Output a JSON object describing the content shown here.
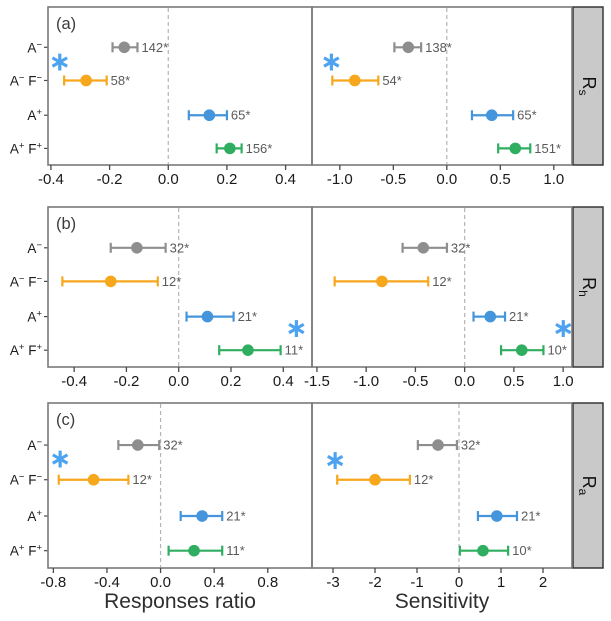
{
  "columns": [
    {
      "axis_title": "Responses ratio"
    },
    {
      "axis_title": "Sensitivity"
    }
  ],
  "star_char": "∗",
  "colors": {
    "gray": "#8e8e8e",
    "orange": "#f6a71c",
    "blue": "#4495dc",
    "green": "#2fae60",
    "star": "#4da3f0",
    "count_label": "#5a5a5a",
    "tick_text": "#1a1a1a",
    "tick_mark": "#4a4a4a",
    "panel_border": "#7a7a7a",
    "zero_line": "#b5b5b5",
    "strip_fill": "#c9c9c9",
    "strip_border": "#2b2b2b",
    "strip_text": "#111111",
    "category_label": "#1a1a1a",
    "panel_letter": "#3c3c3c",
    "axis_title": "#2e2e2e"
  },
  "categories": [
    [
      {
        "t": "A"
      },
      {
        "t": "−",
        "sup": true
      }
    ],
    [
      {
        "t": "A"
      },
      {
        "t": "−",
        "sup": true
      },
      {
        "t": " F"
      },
      {
        "t": "−",
        "sup": true
      }
    ],
    [
      {
        "t": "A"
      },
      {
        "t": "+",
        "sup": true
      }
    ],
    [
      {
        "t": "A"
      },
      {
        "t": "+",
        "sup": true
      },
      {
        "t": " F"
      },
      {
        "t": "+",
        "sup": true
      }
    ]
  ],
  "chart_data": [
    {
      "type": "forest-dot",
      "panel_letter": "(a)",
      "strip_label": {
        "base": "R",
        "sub": "s"
      },
      "panels": [
        {
          "side": "left",
          "xlabel": "Responses ratio",
          "xlim": [
            -0.41,
            0.49
          ],
          "ticks": [
            {
              "v": -0.4,
              "label": "-0.4"
            },
            {
              "v": -0.2,
              "label": "-0.2"
            },
            {
              "v": 0.0,
              "label": "0.0"
            },
            {
              "v": 0.2,
              "label": "0.2"
            },
            {
              "v": 0.4,
              "label": "0.4"
            }
          ],
          "points": [
            {
              "category": "A−",
              "color": "gray",
              "value": -0.15,
              "ci": [
                -0.19,
                -0.105
              ],
              "n": "142*"
            },
            {
              "category": "A− F−",
              "color": "orange",
              "value": -0.28,
              "ci": [
                -0.355,
                -0.21
              ],
              "n": "58*"
            },
            {
              "category": "A+",
              "color": "blue",
              "value": 0.14,
              "ci": [
                0.07,
                0.2
              ],
              "n": "65*"
            },
            {
              "category": "A+ F+",
              "color": "green",
              "value": 0.21,
              "ci": [
                0.165,
                0.25
              ],
              "n": "156*"
            }
          ],
          "star": {
            "x": -0.37,
            "row_pos": 0.45
          }
        },
        {
          "side": "right",
          "xlabel": "Sensitivity",
          "xlim": [
            -1.26,
            1.17
          ],
          "ticks": [
            {
              "v": -1.0,
              "label": "-1.0"
            },
            {
              "v": -0.5,
              "label": "-0.5"
            },
            {
              "v": 0.0,
              "label": "0.0"
            },
            {
              "v": 0.5,
              "label": "0.5"
            },
            {
              "v": 1.0,
              "label": "1.0"
            }
          ],
          "points": [
            {
              "category": "A−",
              "color": "gray",
              "value": -0.36,
              "ci": [
                -0.49,
                -0.24
              ],
              "n": "138*"
            },
            {
              "category": "A− F−",
              "color": "orange",
              "value": -0.86,
              "ci": [
                -1.07,
                -0.64
              ],
              "n": "54*"
            },
            {
              "category": "A+",
              "color": "blue",
              "value": 0.42,
              "ci": [
                0.235,
                0.62
              ],
              "n": "65*"
            },
            {
              "category": "A+ F+",
              "color": "green",
              "value": 0.64,
              "ci": [
                0.48,
                0.78
              ],
              "n": "151*"
            }
          ],
          "star": {
            "x": -1.08,
            "row_pos": 0.45
          }
        }
      ]
    },
    {
      "type": "forest-dot",
      "panel_letter": "(b)",
      "strip_label": {
        "base": "R",
        "sub": "h"
      },
      "panels": [
        {
          "side": "left",
          "xlabel": "Responses ratio",
          "xlim": [
            -0.5,
            0.51
          ],
          "ticks": [
            {
              "v": -0.4,
              "label": "-0.4"
            },
            {
              "v": -0.2,
              "label": "-0.2"
            },
            {
              "v": 0.0,
              "label": "0.0"
            },
            {
              "v": 0.2,
              "label": "0.2"
            },
            {
              "v": 0.4,
              "label": "0.4"
            }
          ],
          "points": [
            {
              "category": "A−",
              "color": "gray",
              "value": -0.16,
              "ci": [
                -0.26,
                -0.05
              ],
              "n": "32*"
            },
            {
              "category": "A− F−",
              "color": "orange",
              "value": -0.26,
              "ci": [
                -0.445,
                -0.08
              ],
              "n": "12*"
            },
            {
              "category": "A+",
              "color": "blue",
              "value": 0.11,
              "ci": [
                0.03,
                0.21
              ],
              "n": "21*"
            },
            {
              "category": "A+ F+",
              "color": "green",
              "value": 0.265,
              "ci": [
                0.155,
                0.39
              ],
              "n": "11*"
            }
          ],
          "star": {
            "x": 0.45,
            "row_pos": 2.35
          }
        },
        {
          "side": "right",
          "xlabel": "Sensitivity",
          "xlim": [
            -1.55,
            1.09
          ],
          "ticks": [
            {
              "v": -1.5,
              "label": "-1.5"
            },
            {
              "v": -1.0,
              "label": "-1.0"
            },
            {
              "v": -0.5,
              "label": "-0.5"
            },
            {
              "v": 0.0,
              "label": "0.0"
            },
            {
              "v": 0.5,
              "label": "0.5"
            },
            {
              "v": 1.0,
              "label": "1.0"
            }
          ],
          "points": [
            {
              "category": "A−",
              "color": "gray",
              "value": -0.42,
              "ci": [
                -0.63,
                -0.18
              ],
              "n": "32*"
            },
            {
              "category": "A− F−",
              "color": "orange",
              "value": -0.84,
              "ci": [
                -1.32,
                -0.37
              ],
              "n": "12*"
            },
            {
              "category": "A+",
              "color": "blue",
              "value": 0.26,
              "ci": [
                0.09,
                0.41
              ],
              "n": "21*"
            },
            {
              "category": "A+ F+",
              "color": "green",
              "value": 0.58,
              "ci": [
                0.37,
                0.8
              ],
              "n": "10*"
            }
          ],
          "star": {
            "x": 1.0,
            "row_pos": 2.35
          }
        }
      ]
    },
    {
      "type": "forest-dot",
      "panel_letter": "(c)",
      "strip_label": {
        "base": "R",
        "sub": "a"
      },
      "panels": [
        {
          "side": "left",
          "xlabel": "Responses ratio",
          "xlim": [
            -0.84,
            1.13
          ],
          "ticks": [
            {
              "v": -0.8,
              "label": "-0.8"
            },
            {
              "v": -0.4,
              "label": "-0.4"
            },
            {
              "v": 0.0,
              "label": "0.0"
            },
            {
              "v": 0.4,
              "label": "0.4"
            },
            {
              "v": 0.8,
              "label": "0.8"
            }
          ],
          "points": [
            {
              "category": "A−",
              "color": "gray",
              "value": -0.17,
              "ci": [
                -0.315,
                -0.01
              ],
              "n": "32*"
            },
            {
              "category": "A− F−",
              "color": "orange",
              "value": -0.5,
              "ci": [
                -0.76,
                -0.24
              ],
              "n": "12*"
            },
            {
              "category": "A+",
              "color": "blue",
              "value": 0.31,
              "ci": [
                0.15,
                0.46
              ],
              "n": "21*"
            },
            {
              "category": "A+ F+",
              "color": "green",
              "value": 0.25,
              "ci": [
                0.06,
                0.46
              ],
              "n": "11*"
            }
          ],
          "star": {
            "x": -0.75,
            "row_pos": 0.4
          }
        },
        {
          "side": "right",
          "xlabel": "Sensitivity",
          "xlim": [
            -3.5,
            2.69
          ],
          "ticks": [
            {
              "v": -3,
              "label": "-3"
            },
            {
              "v": -2,
              "label": "-2"
            },
            {
              "v": -1,
              "label": "-1"
            },
            {
              "v": 0,
              "label": "0"
            },
            {
              "v": 1,
              "label": "1"
            },
            {
              "v": 2,
              "label": "2"
            }
          ],
          "points": [
            {
              "category": "A−",
              "color": "gray",
              "value": -0.5,
              "ci": [
                -0.98,
                -0.05
              ],
              "n": "32*"
            },
            {
              "category": "A− F−",
              "color": "orange",
              "value": -2.0,
              "ci": [
                -2.9,
                -1.17
              ],
              "n": "12*"
            },
            {
              "category": "A+",
              "color": "blue",
              "value": 0.9,
              "ci": [
                0.45,
                1.38
              ],
              "n": "21*"
            },
            {
              "category": "A+ F+",
              "color": "green",
              "value": 0.57,
              "ci": [
                0.02,
                1.17
              ],
              "n": "10*"
            }
          ],
          "star": {
            "x": -2.95,
            "row_pos": 0.45
          }
        }
      ]
    }
  ]
}
